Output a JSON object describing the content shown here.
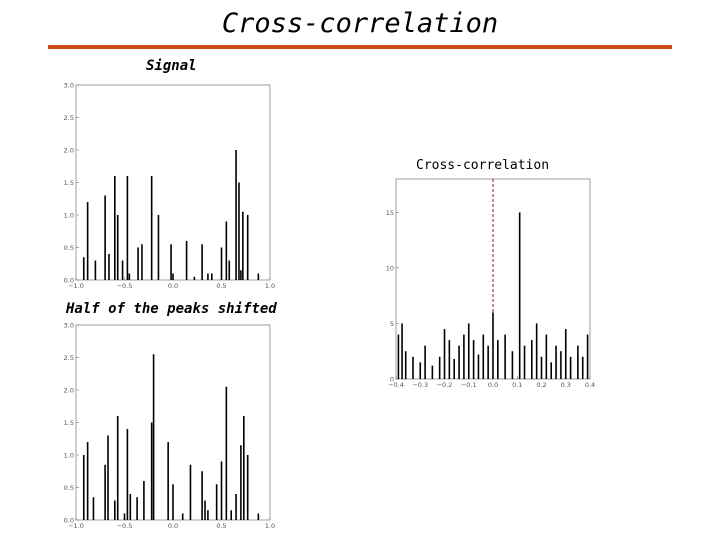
{
  "slide": {
    "title": "Cross-correlation"
  },
  "chart_data": [
    {
      "type": "bar",
      "caption": "Signal",
      "xlim": [
        -1.0,
        1.0
      ],
      "ylim": [
        0.0,
        3.0
      ],
      "xticks": [
        -1.0,
        -0.5,
        0.0,
        0.5,
        1.0
      ],
      "xtick_labels": [
        "−1.0",
        "−0.5",
        "0.0",
        "0.5",
        "1.0"
      ],
      "yticks": [
        "0.0",
        "0.5",
        "1.0",
        "1.5",
        "2.0",
        "2.5",
        "3.0"
      ],
      "x": [
        -0.92,
        -0.88,
        -0.8,
        -0.7,
        -0.66,
        -0.6,
        -0.57,
        -0.52,
        -0.47,
        -0.45,
        -0.36,
        -0.32,
        -0.22,
        -0.15,
        -0.02,
        0.0,
        0.14,
        0.22,
        0.3,
        0.36,
        0.4,
        0.5,
        0.55,
        0.58,
        0.65,
        0.68,
        0.7,
        0.72,
        0.77,
        0.88
      ],
      "values": [
        0.35,
        1.2,
        0.3,
        1.3,
        0.4,
        1.6,
        1.0,
        0.3,
        1.6,
        0.1,
        0.5,
        0.55,
        1.6,
        1.0,
        0.55,
        0.1,
        0.6,
        0.05,
        0.55,
        0.1,
        0.1,
        0.5,
        0.9,
        0.3,
        2.0,
        1.5,
        0.15,
        1.05,
        1.0,
        0.1
      ]
    },
    {
      "type": "bar",
      "caption": "Half of the peaks shifted",
      "xlim": [
        -1.0,
        1.0
      ],
      "ylim": [
        0.0,
        3.0
      ],
      "xticks": [
        -1.0,
        -0.5,
        0.0,
        0.5,
        1.0
      ],
      "xtick_labels": [
        "−1.0",
        "−0.5",
        "0.0",
        "0.5",
        "1.0"
      ],
      "yticks": [
        "0.0",
        "0.5",
        "1.0",
        "1.5",
        "2.0",
        "2.5",
        "3.0"
      ],
      "x": [
        -0.92,
        -0.88,
        -0.82,
        -0.7,
        -0.67,
        -0.6,
        -0.57,
        -0.5,
        -0.47,
        -0.44,
        -0.37,
        -0.3,
        -0.22,
        -0.2,
        -0.05,
        0.0,
        0.1,
        0.18,
        0.3,
        0.33,
        0.36,
        0.45,
        0.5,
        0.55,
        0.6,
        0.65,
        0.7,
        0.73,
        0.77,
        0.88
      ],
      "values": [
        1.0,
        1.2,
        0.35,
        0.85,
        1.3,
        0.3,
        1.6,
        0.1,
        1.4,
        0.4,
        0.35,
        0.6,
        1.5,
        2.55,
        1.2,
        0.55,
        0.1,
        0.85,
        0.75,
        0.3,
        0.15,
        0.55,
        0.9,
        2.05,
        0.15,
        0.4,
        1.15,
        1.6,
        1.0,
        0.1
      ]
    },
    {
      "type": "bar",
      "caption": "Cross-correlation",
      "xlim": [
        -0.4,
        0.4
      ],
      "ylim": [
        0,
        18
      ],
      "xticks": [
        -0.4,
        -0.3,
        -0.2,
        -0.1,
        0.0,
        0.1,
        0.2,
        0.3,
        0.4
      ],
      "xtick_labels": [
        "−0.4",
        "−0.3",
        "−0.2",
        "−0.1",
        "0.0",
        "0.1",
        "0.2",
        "0.3",
        "0.4"
      ],
      "yticks": [
        "0",
        "5",
        "10",
        "15"
      ],
      "peak_line_x": 0.0,
      "peak_line_color": "#8b1a1a",
      "x": [
        -0.39,
        -0.375,
        -0.36,
        -0.33,
        -0.3,
        -0.28,
        -0.25,
        -0.22,
        -0.2,
        -0.18,
        -0.16,
        -0.14,
        -0.12,
        -0.1,
        -0.08,
        -0.06,
        -0.04,
        -0.02,
        0.0,
        0.02,
        0.05,
        0.08,
        0.11,
        0.13,
        0.16,
        0.18,
        0.2,
        0.22,
        0.24,
        0.26,
        0.28,
        0.3,
        0.32,
        0.35,
        0.37,
        0.39
      ],
      "values": [
        4.0,
        5.0,
        2.5,
        2.0,
        1.5,
        3.0,
        1.2,
        2.0,
        4.5,
        3.5,
        1.8,
        3.0,
        4.0,
        5.0,
        3.5,
        2.2,
        4.0,
        3.0,
        6.0,
        3.5,
        4.0,
        2.5,
        15.0,
        3.0,
        3.5,
        5.0,
        2.0,
        4.0,
        1.5,
        3.0,
        2.5,
        4.5,
        2.0,
        3.0,
        2.0,
        4.0
      ]
    }
  ]
}
